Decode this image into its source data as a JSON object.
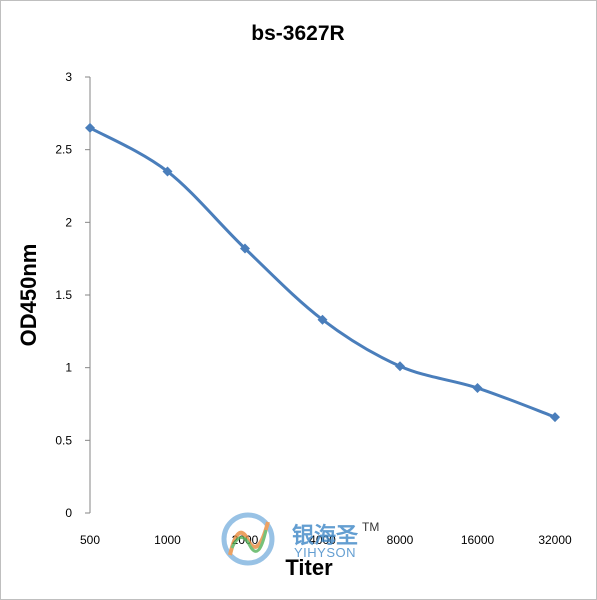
{
  "chart_data": {
    "type": "line",
    "title": "bs-3627R",
    "xlabel": "Titer",
    "ylabel": "OD450nm",
    "categories": [
      "500",
      "1000",
      "2000",
      "4000",
      "8000",
      "16000",
      "32000"
    ],
    "values": [
      2.65,
      2.35,
      1.82,
      1.33,
      1.01,
      0.86,
      0.66
    ],
    "yticks": [
      "0",
      "0.5",
      "1",
      "1.5",
      "2",
      "2.5",
      "3"
    ],
    "ylim": [
      0,
      3
    ],
    "grid": false,
    "legend": "none",
    "series_color": "#4a7ebb",
    "marker": "diamond"
  },
  "watermark": {
    "brand_cn": "银海圣",
    "brand_en": "YIHYSON",
    "trademark": "TM"
  }
}
